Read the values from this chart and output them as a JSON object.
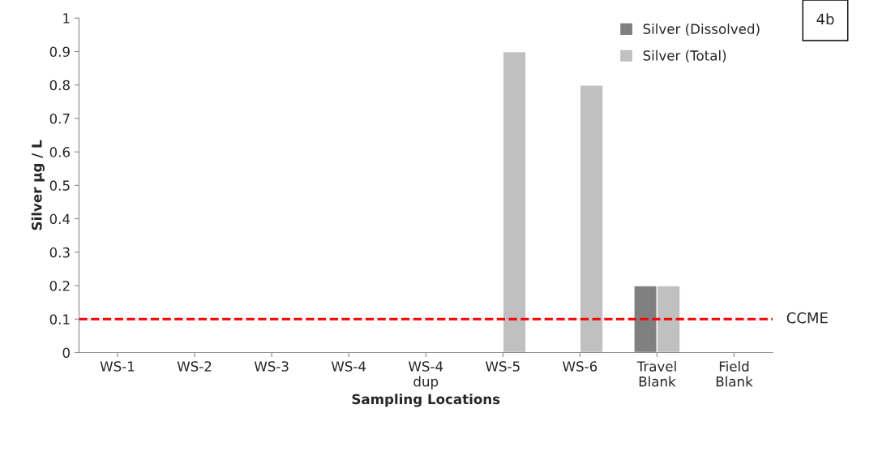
{
  "chart_data": {
    "type": "bar",
    "xlabel": "Sampling Locations",
    "ylabel": "Silver µg / L",
    "categories": [
      "WS-1",
      "WS-2",
      "WS-3",
      "WS-4",
      "WS-4\ndup",
      "WS-5",
      "WS-6",
      "Travel\nBlank",
      "Field\nBlank"
    ],
    "series": [
      {
        "name": "Silver (Dissolved)",
        "color": "#808080",
        "values": [
          null,
          null,
          null,
          null,
          null,
          null,
          null,
          0.2,
          null
        ]
      },
      {
        "name": "Silver (Total)",
        "color": "#c0c0c0",
        "values": [
          null,
          null,
          null,
          null,
          null,
          0.9,
          0.8,
          0.2,
          null
        ]
      }
    ],
    "ylim": [
      0,
      1
    ],
    "yticks": [
      0,
      0.1,
      0.2,
      0.3,
      0.4,
      0.5,
      0.6,
      0.7,
      0.8,
      0.9,
      1
    ],
    "ref_lines": [
      {
        "axis": "y",
        "value": 0.1,
        "label": "CCME",
        "color": "#ff0000",
        "line_style": "dashed"
      }
    ],
    "annotations": [
      "4b"
    ],
    "legend": "top right",
    "grid": false
  }
}
